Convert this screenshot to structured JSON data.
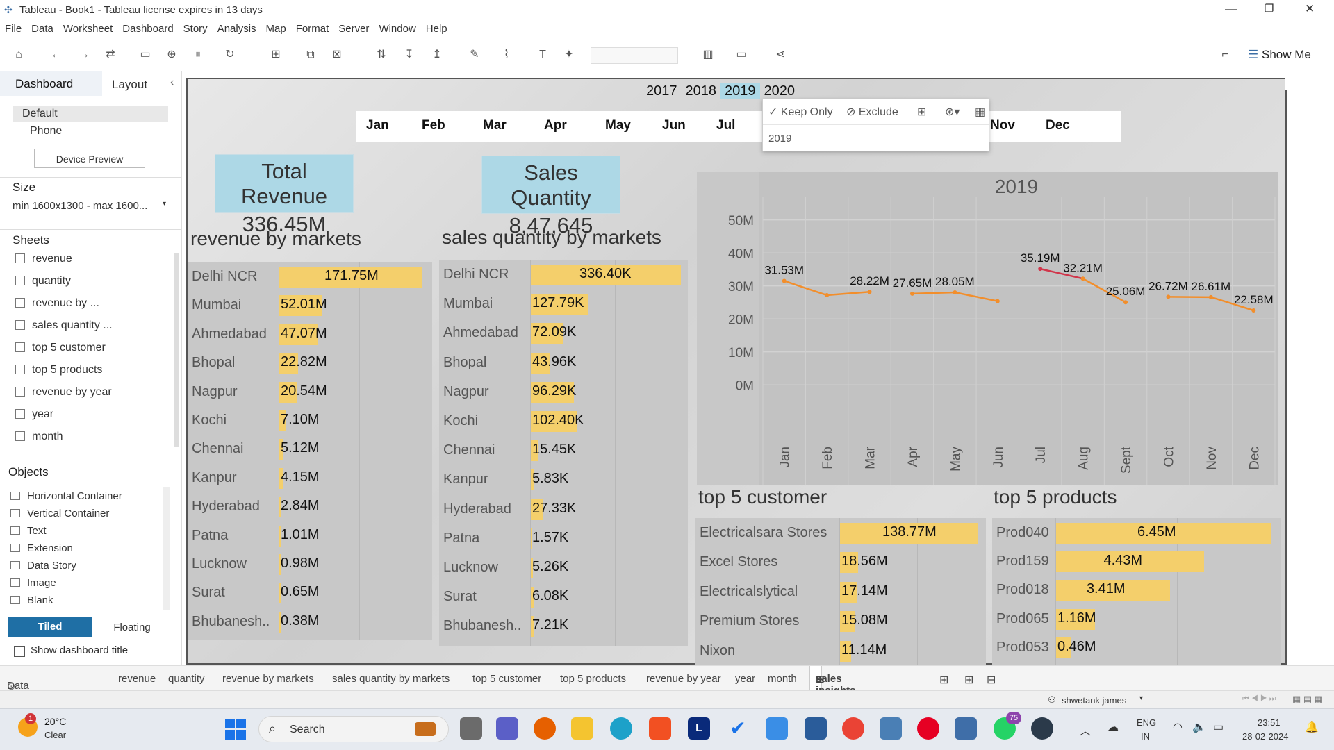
{
  "window": {
    "title": "Tableau - Book1 - Tableau license expires in 13 days"
  },
  "menu": [
    "File",
    "Data",
    "Worksheet",
    "Dashboard",
    "Story",
    "Analysis",
    "Map",
    "Format",
    "Server",
    "Window",
    "Help"
  ],
  "toolbar": {
    "show_me": "Show Me"
  },
  "left_pane": {
    "tab_dashboard": "Dashboard",
    "tab_layout": "Layout",
    "device_default": "Default",
    "device_phone": "Phone",
    "device_preview": "Device Preview",
    "size_label": "Size",
    "size_value": "min 1600x1300 - max 1600...",
    "sheets_label": "Sheets",
    "sheets": [
      "revenue",
      "quantity",
      "revenue by ...",
      "sales quantity ...",
      "top 5 customer",
      "top 5 products",
      "revenue by year",
      "year",
      "month"
    ],
    "objects_label": "Objects",
    "objects": [
      "Horizontal Container",
      "Vertical Container",
      "Text",
      "Extension",
      "Data Story",
      "Image",
      "Blank"
    ],
    "tiled": "Tiled",
    "floating": "Floating",
    "show_title": "Show dashboard title"
  },
  "dashboard": {
    "years": [
      "2017",
      "2018",
      "2019",
      "2020"
    ],
    "months": [
      "Jan",
      "Feb",
      "Mar",
      "Apr",
      "May",
      "Jun",
      "Jul",
      "Nov",
      "Dec"
    ],
    "popup": {
      "keep_only": "✓ Keep Only",
      "exclude": "⊘ Exclude",
      "value": "2019"
    },
    "kpi_revenue": {
      "label": "Total Revenue",
      "value": "336.45M"
    },
    "kpi_quantity": {
      "label": "Sales Quantity",
      "value": "8,47,645"
    },
    "rev_title": "revenue by markets",
    "qty_title": "sales quantity by markets",
    "cust_title": "top 5 customer",
    "prod_title": "top 5 products"
  },
  "chart_data": [
    {
      "type": "bar",
      "title": "revenue by markets",
      "categories": [
        "Delhi NCR",
        "Mumbai",
        "Ahmedabad",
        "Bhopal",
        "Nagpur",
        "Kochi",
        "Chennai",
        "Kanpur",
        "Hyderabad",
        "Patna",
        "Lucknow",
        "Surat",
        "Bhubanesh.."
      ],
      "values": [
        171.75,
        52.01,
        47.07,
        22.82,
        20.54,
        7.1,
        5.12,
        4.15,
        2.84,
        1.01,
        0.98,
        0.65,
        0.38
      ],
      "labels": [
        "171.75M",
        "52.01M",
        "47.07M",
        "22.82M",
        "20.54M",
        "7.10M",
        "5.12M",
        "4.15M",
        "2.84M",
        "1.01M",
        "0.98M",
        "0.65M",
        "0.38M"
      ]
    },
    {
      "type": "bar",
      "title": "sales quantity by markets",
      "categories": [
        "Delhi NCR",
        "Mumbai",
        "Ahmedabad",
        "Bhopal",
        "Nagpur",
        "Kochi",
        "Chennai",
        "Kanpur",
        "Hyderabad",
        "Patna",
        "Lucknow",
        "Surat",
        "Bhubanesh.."
      ],
      "values": [
        336.4,
        127.79,
        72.09,
        43.96,
        96.29,
        102.4,
        15.45,
        5.83,
        27.33,
        1.57,
        5.26,
        6.08,
        7.21
      ],
      "labels": [
        "336.40K",
        "127.79K",
        "72.09K",
        "43.96K",
        "96.29K",
        "102.40K",
        "15.45K",
        "5.83K",
        "27.33K",
        "1.57K",
        "5.26K",
        "6.08K",
        "7.21K"
      ]
    },
    {
      "type": "line",
      "title": "2019",
      "x": [
        "Jan",
        "Feb",
        "Mar",
        "Apr",
        "May",
        "Jun",
        "Jul",
        "Aug",
        "Sept",
        "Oct",
        "Nov",
        "Dec"
      ],
      "values": [
        31.53,
        27.2,
        28.22,
        27.65,
        28.05,
        25.4,
        35.19,
        32.21,
        25.06,
        26.72,
        26.61,
        22.58
      ],
      "labels": [
        "31.53M",
        "",
        "28.22M",
        "27.65M",
        "28.05M",
        "",
        "35.19M",
        "32.21M",
        "25.06M",
        "26.72M",
        "26.61M",
        "22.58M"
      ],
      "yticks": [
        "0M",
        "10M",
        "20M",
        "30M",
        "40M",
        "50M"
      ],
      "ylim": [
        -5,
        55
      ],
      "grid": true
    },
    {
      "type": "bar",
      "title": "top 5 customer",
      "categories": [
        "Electricalsara Stores",
        "Excel Stores",
        "Electricalslytical",
        "Premium Stores",
        "Nixon"
      ],
      "values": [
        138.77,
        18.56,
        17.14,
        15.08,
        11.14
      ],
      "labels": [
        "138.77M",
        "18.56M",
        "17.14M",
        "15.08M",
        "11.14M"
      ]
    },
    {
      "type": "bar",
      "title": "top 5 products",
      "categories": [
        "Prod040",
        "Prod159",
        "Prod018",
        "Prod065",
        "Prod053"
      ],
      "values": [
        6.45,
        4.43,
        3.41,
        1.16,
        0.46
      ],
      "labels": [
        "6.45M",
        "4.43M",
        "3.41M",
        "1.16M",
        "0.46M"
      ]
    }
  ],
  "bottom_tabs": [
    "Data Source",
    "revenue",
    "quantity",
    "revenue by markets",
    "sales quantity by markets",
    "top 5 customer",
    "top 5 products",
    "revenue by year",
    "year",
    "month",
    "sales insights project"
  ],
  "status": {
    "user": "shwetank james"
  },
  "taskbar": {
    "weather_temp": "20°C",
    "weather_text": "Clear",
    "search": "Search",
    "lang1": "ENG",
    "lang2": "IN",
    "time": "23:51",
    "date": "28-02-2024",
    "badge_weather": "1",
    "badge_whatsapp": "75"
  }
}
